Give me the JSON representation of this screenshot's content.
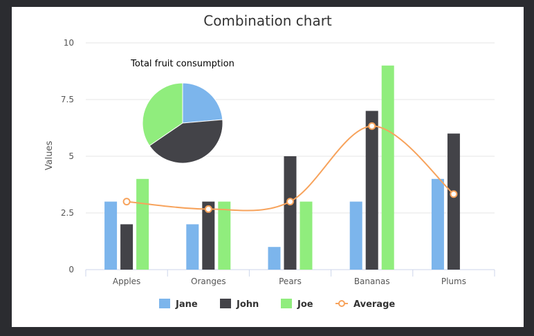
{
  "chart_data": {
    "type": "bar",
    "title": "Combination chart",
    "xlabel": "",
    "ylabel": "Values",
    "ylim": [
      0,
      10
    ],
    "yticks": [
      0,
      2.5,
      5,
      7.5,
      10
    ],
    "ytick_labels": [
      "0",
      "2.5",
      "5",
      "7.5",
      "10"
    ],
    "grid": true,
    "legend_position": "bottom",
    "categories": [
      "Apples",
      "Oranges",
      "Pears",
      "Bananas",
      "Plums"
    ],
    "series": [
      {
        "name": "Jane",
        "type": "bar",
        "color": "#7cb5ec",
        "values": [
          3,
          2,
          1,
          3,
          4
        ]
      },
      {
        "name": "John",
        "type": "bar",
        "color": "#434348",
        "values": [
          2,
          3,
          5,
          7,
          6
        ]
      },
      {
        "name": "Joe",
        "type": "bar",
        "color": "#90ed7d",
        "values": [
          4,
          3,
          3,
          9,
          0
        ]
      },
      {
        "name": "Average",
        "type": "spline",
        "color": "#f7a35c",
        "values": [
          3,
          2.67,
          3,
          6.33,
          3.33
        ]
      }
    ],
    "pie": {
      "title": "Total fruit consumption",
      "slices": [
        {
          "name": "Jane",
          "value": 13,
          "color": "#7cb5ec"
        },
        {
          "name": "John",
          "value": 23,
          "color": "#434348"
        },
        {
          "name": "Joe",
          "value": 19,
          "color": "#90ed7d"
        }
      ]
    }
  }
}
